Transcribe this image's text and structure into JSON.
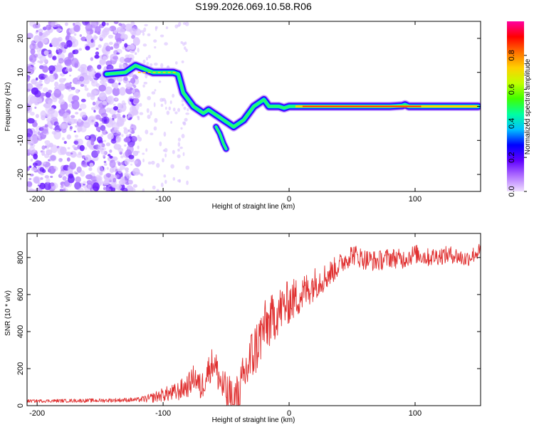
{
  "title": "S199.2026.069.10.58.R06",
  "chart_data": [
    {
      "type": "heatmap",
      "panel": "spectrogram",
      "xlabel": "Height of straight line (km)",
      "ylabel": "Frequency (Hz)",
      "xlim": [
        -208,
        152
      ],
      "ylim": [
        -25,
        25
      ],
      "xticks": [
        -200,
        -100,
        0,
        100
      ],
      "yticks": [
        -20,
        -10,
        0,
        10,
        20
      ],
      "colorbar": {
        "label": "Normalized spectral amplitude",
        "range": [
          0,
          1
        ],
        "ticks": [
          "0.0",
          "0.2",
          "0.4",
          "0.6",
          "0.8"
        ],
        "tick_values": [
          0.0,
          0.2,
          0.4,
          0.6,
          0.8
        ],
        "colors": [
          "#f0e0ff",
          "#b070ff",
          "#6000ff",
          "#0000ff",
          "#00c0ff",
          "#00ffa0",
          "#40ff00",
          "#c0ff00",
          "#ffd000",
          "#ff7000",
          "#ff0000",
          "#ff00a0"
        ]
      },
      "ridge": {
        "x": [
          -145,
          -130,
          -122,
          -115,
          -108,
          -100,
          -92,
          -88,
          -84,
          -80,
          -76,
          -72,
          -68,
          -64,
          -60,
          -56,
          -52,
          -48,
          -44,
          -40,
          -36,
          -32,
          -28,
          -24,
          -20,
          -16,
          -12,
          -8,
          -4,
          0,
          10,
          40,
          80,
          90,
          92,
          95,
          110,
          150
        ],
        "y": [
          9.5,
          10,
          12,
          11,
          10,
          10,
          10,
          9.5,
          4,
          2,
          0,
          -1,
          -2,
          -1,
          -2,
          -3,
          -4,
          -5,
          -6,
          -5,
          -4,
          -2,
          0,
          1,
          2,
          0,
          0,
          0,
          -0.5,
          0,
          0,
          0,
          0,
          0.2,
          0.5,
          0,
          0,
          0
        ]
      },
      "branch": {
        "x": [
          -58,
          -55,
          -52,
          -50
        ],
        "y": [
          -6,
          -8,
          -11,
          -12.5
        ]
      },
      "noise_region_x": [
        -208,
        -120
      ],
      "sparse_region_x": [
        -120,
        -80
      ]
    },
    {
      "type": "line",
      "panel": "snr",
      "xlabel": "Height of straight line (km)",
      "ylabel": "SNR (10 * v/v)",
      "xlim": [
        -208,
        152
      ],
      "ylim": [
        0,
        930
      ],
      "xticks": [
        -200,
        -100,
        0,
        100
      ],
      "yticks": [
        0,
        200,
        400,
        600,
        800
      ],
      "series": [
        {
          "name": "SNR",
          "color": "#e03030",
          "envelope_x": [
            -208,
            -150,
            -120,
            -110,
            -100,
            -90,
            -80,
            -75,
            -70,
            -65,
            -60,
            -55,
            -50,
            -45,
            -40,
            -35,
            -30,
            -25,
            -20,
            -15,
            -10,
            -5,
            0,
            10,
            20,
            30,
            40,
            50,
            60,
            70,
            80,
            90,
            100,
            110,
            120,
            130,
            140,
            150
          ],
          "envelope_y": [
            25,
            28,
            32,
            40,
            60,
            70,
            110,
            160,
            90,
            180,
            240,
            140,
            60,
            30,
            40,
            170,
            260,
            330,
            420,
            450,
            500,
            530,
            560,
            600,
            660,
            700,
            760,
            820,
            790,
            780,
            800,
            790,
            820,
            800,
            810,
            815,
            790,
            830
          ],
          "noise_amp_x": [
            -208,
            -120,
            -60,
            -30,
            0,
            40,
            150
          ],
          "noise_amp_y": [
            8,
            12,
            90,
            160,
            120,
            60,
            45
          ]
        }
      ]
    }
  ]
}
